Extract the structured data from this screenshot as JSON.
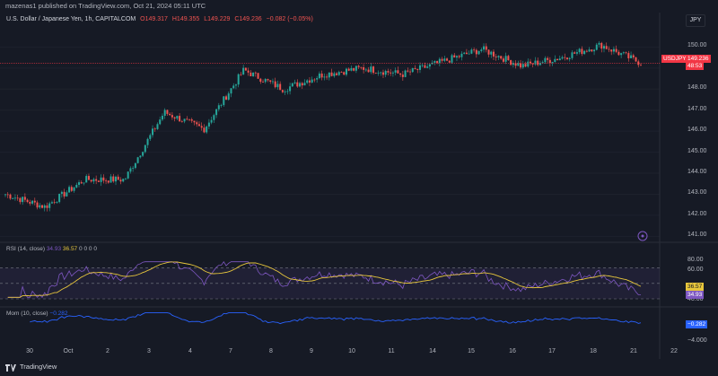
{
  "header": {
    "publish_line": "mazenas1 published on TradingView.com, Oct 21, 2024 05:11 UTC"
  },
  "main_legend": {
    "title": "U.S. Dollar / Japanese Yen, 1h, CAPITALCOM",
    "o": "O149.317",
    "h": "H149.355",
    "l": "L149.229",
    "c": "C149.236",
    "change": "−0.082 (−0.05%)"
  },
  "symbol_button": "JPY",
  "price_axis": {
    "labels": [
      "150.00",
      "148.00",
      "147.00",
      "146.00",
      "145.00",
      "144.00",
      "143.00",
      "142.00",
      "141.00"
    ],
    "symbol_badge": "USDJPY",
    "last_price": "149.236",
    "countdown": "48:53"
  },
  "rsi_pane": {
    "label": "RSI (14, close)",
    "rsi_value": "34.93",
    "ma_value": "36.57",
    "extras": [
      "0",
      "0",
      "0",
      "0"
    ],
    "levels": [
      "80.00",
      "60.00",
      "40.00"
    ]
  },
  "mom_pane": {
    "label": "Mom (10, close)",
    "value": "−0.282",
    "axis_label": "−4.000"
  },
  "time_axis": {
    "labels": [
      "30",
      "Oct",
      "2",
      "3",
      "4",
      "7",
      "8",
      "9",
      "10",
      "11",
      "14",
      "15",
      "16",
      "17",
      "18",
      "21",
      "22"
    ]
  },
  "footer": {
    "brand": "TradingView"
  },
  "colors": {
    "background": "#161a25",
    "up": "#26a69a",
    "down": "#ef5350",
    "rsi_line": "#7e57c2",
    "rsi_ma": "#e7c63c",
    "mom_line": "#2962ff",
    "price_line": "#f23645"
  },
  "chart_data": {
    "type": "line",
    "title": "U.S. Dollar / Japanese Yen, 1h, CAPITALCOM",
    "xlabel": "",
    "ylabel": "",
    "x": [
      "Sep 30",
      "Oct 1",
      "Oct 2",
      "Oct 3",
      "Oct 4",
      "Oct 4",
      "Oct 7",
      "Oct 8",
      "Oct 9",
      "Oct 10",
      "Oct 11",
      "Oct 14",
      "Oct 15",
      "Oct 16",
      "Oct 17",
      "Oct 18",
      "Oct 21"
    ],
    "series": [
      {
        "values": [
          143.0,
          142.4,
          143.7,
          143.7,
          146.9,
          146.1,
          148.9,
          148.0,
          148.7,
          149.0,
          148.7,
          149.3,
          149.9,
          149.1,
          149.5,
          150.1,
          149.24
        ]
      }
    ],
    "ylim": [
      140.8,
      150.7
    ],
    "grid": true
  }
}
